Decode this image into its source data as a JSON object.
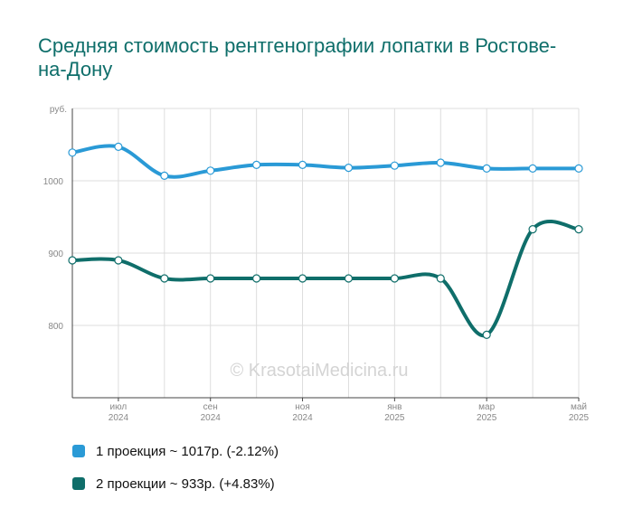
{
  "title": "Средняя стоимость рентгенографии лопатки в Ростове-на-Дону",
  "watermark": "© KrasotaiMedicina.ru",
  "chart_data": {
    "type": "line",
    "ylabel": "руб.",
    "ylim": [
      700,
      1100
    ],
    "yticks": [
      800,
      900,
      1000
    ],
    "grid": true,
    "legend_position": "bottom-left",
    "x_labels": [
      {
        "month": "июл",
        "year": "2024",
        "index": 1
      },
      {
        "month": "сен",
        "year": "2024",
        "index": 3
      },
      {
        "month": "ноя",
        "year": "2024",
        "index": 5
      },
      {
        "month": "янв",
        "year": "2025",
        "index": 7
      },
      {
        "month": "мар",
        "year": "2025",
        "index": 9
      },
      {
        "month": "май",
        "year": "2025",
        "index": 11
      }
    ],
    "series": [
      {
        "name": "1 проекция",
        "color": "#2a9ad6",
        "values": [
          1039,
          1047,
          1007,
          1014,
          1022,
          1022,
          1018,
          1021,
          1025,
          1017,
          1017,
          1017
        ],
        "legend": "1 проекция ~ 1017р. (-2.12%)"
      },
      {
        "name": "2 проекции",
        "color": "#0f6e6a",
        "values": [
          890,
          890,
          865,
          865,
          865,
          865,
          865,
          865,
          865,
          787,
          933,
          933
        ],
        "legend": "2 проекции ~ 933р. (+4.83%)"
      }
    ]
  }
}
